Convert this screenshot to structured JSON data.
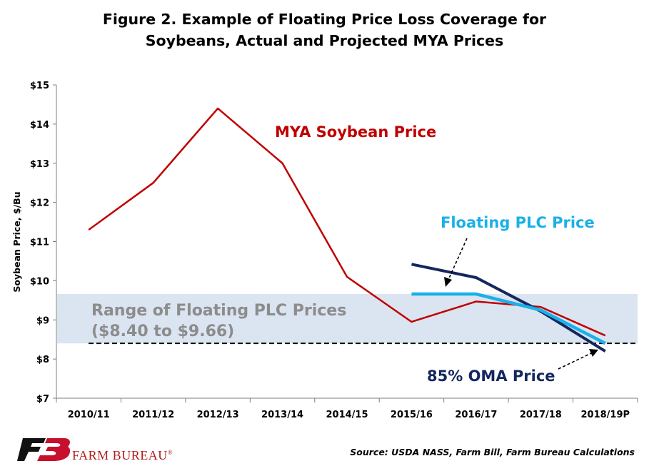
{
  "header": {
    "title_line1": "Figure 2. Example of Floating Price Loss Coverage for",
    "title_line2": "Soybeans, Actual and Projected MYA Prices"
  },
  "chart_data": {
    "type": "line",
    "title": "Figure 2. Example of Floating Price Loss Coverage for Soybeans, Actual and Projected MYA Prices",
    "xlabel": "",
    "ylabel": "Soybean Price, $/Bu",
    "categories": [
      "2010/11",
      "2011/12",
      "2012/13",
      "2013/14",
      "2014/15",
      "2015/16",
      "2016/17",
      "2017/18",
      "2018/19P"
    ],
    "ylim": [
      7,
      15
    ],
    "yticks": [
      7,
      8,
      9,
      10,
      11,
      12,
      13,
      14,
      15
    ],
    "ytick_labels": [
      "$7",
      "$8",
      "$9",
      "$10",
      "$11",
      "$12",
      "$13",
      "$14",
      "$15"
    ],
    "grid": false,
    "series": [
      {
        "name": "MYA Soybean Price",
        "color": "#c00000",
        "values": [
          11.3,
          12.5,
          14.4,
          13.0,
          10.1,
          8.95,
          9.47,
          9.33,
          8.6
        ]
      },
      {
        "name": "Floating PLC Price",
        "color": "#1ab0e8",
        "values": [
          null,
          null,
          null,
          null,
          null,
          9.66,
          9.66,
          9.25,
          8.4
        ]
      },
      {
        "name": "85% OMA Price",
        "color": "#14275e",
        "values": [
          null,
          null,
          null,
          null,
          null,
          10.42,
          10.08,
          9.22,
          8.2
        ]
      }
    ],
    "band": {
      "label_line1": "Range of Floating PLC Prices",
      "label_line2": "($8.40 to $9.66)",
      "low": 8.4,
      "high": 9.66,
      "color": "#dbe4f1",
      "text_color": "#8c8c8c"
    },
    "reference_line": {
      "value": 8.4,
      "style": "dashed",
      "color": "#000000"
    }
  },
  "footer": {
    "brand": "FARM BUREAU",
    "trademark": "®",
    "source": "Source: USDA NASS, Farm Bill, Farm Bureau Calculations"
  },
  "colors": {
    "brand": "#c8102e",
    "logo_dark": "#111111"
  },
  "icons": {
    "logo": "farm-bureau-logo-icon"
  }
}
